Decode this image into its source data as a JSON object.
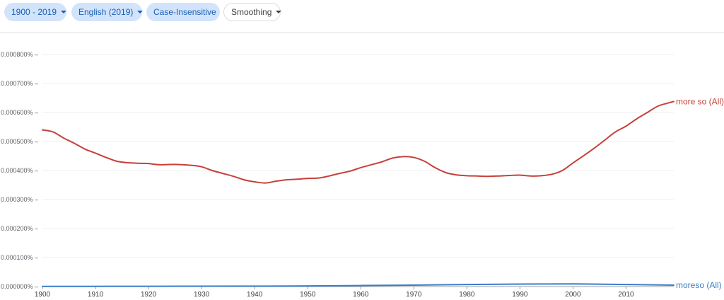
{
  "filters": {
    "years": "1900 - 2019",
    "corpus": "English (2019)",
    "case": "Case-Insensitive",
    "smoothing": "Smoothing"
  },
  "colors": {
    "chip_bg": "#d2e3fc",
    "chip_text": "#1a5fb4",
    "series1": "#c5413a",
    "series2": "#3a7dc9"
  },
  "chart_data": {
    "type": "line",
    "x_range": [
      1900,
      2019
    ],
    "ylim": [
      0,
      0.0008
    ],
    "y_ticks": [
      "0.000000%",
      "0.000100%",
      "0.000200%",
      "0.000300%",
      "0.000400%",
      "0.000500%",
      "0.000600%",
      "0.000700%",
      "0.000800%"
    ],
    "x_ticks": [
      "1900",
      "1910",
      "1920",
      "1930",
      "1940",
      "1950",
      "1960",
      "1970",
      "1980",
      "1990",
      "2000",
      "2010"
    ],
    "grid": true,
    "legend": "right-end labels",
    "series": [
      {
        "name": "more so (All)",
        "points": [
          [
            1900,
            0.00054
          ],
          [
            1902,
            0.000533
          ],
          [
            1904,
            0.000512
          ],
          [
            1906,
            0.000494
          ],
          [
            1908,
            0.000474
          ],
          [
            1910,
            0.00046
          ],
          [
            1912,
            0.000445
          ],
          [
            1914,
            0.000432
          ],
          [
            1916,
            0.000427
          ],
          [
            1918,
            0.000425
          ],
          [
            1920,
            0.000424
          ],
          [
            1922,
            0.00042
          ],
          [
            1925,
            0.000421
          ],
          [
            1928,
            0.000418
          ],
          [
            1930,
            0.000413
          ],
          [
            1932,
            0.0004
          ],
          [
            1934,
            0.00039
          ],
          [
            1936,
            0.00038
          ],
          [
            1938,
            0.000368
          ],
          [
            1940,
            0.000361
          ],
          [
            1942,
            0.000357
          ],
          [
            1944,
            0.000363
          ],
          [
            1946,
            0.000368
          ],
          [
            1948,
            0.00037
          ],
          [
            1950,
            0.000373
          ],
          [
            1952,
            0.000374
          ],
          [
            1954,
            0.000381
          ],
          [
            1956,
            0.00039
          ],
          [
            1958,
            0.000398
          ],
          [
            1960,
            0.00041
          ],
          [
            1962,
            0.00042
          ],
          [
            1964,
            0.00043
          ],
          [
            1966,
            0.000443
          ],
          [
            1968,
            0.000448
          ],
          [
            1970,
            0.000445
          ],
          [
            1972,
            0.000432
          ],
          [
            1974,
            0.00041
          ],
          [
            1976,
            0.000393
          ],
          [
            1978,
            0.000385
          ],
          [
            1980,
            0.000382
          ],
          [
            1982,
            0.000381
          ],
          [
            1984,
            0.00038
          ],
          [
            1986,
            0.000381
          ],
          [
            1988,
            0.000383
          ],
          [
            1990,
            0.000384
          ],
          [
            1992,
            0.000381
          ],
          [
            1994,
            0.000382
          ],
          [
            1996,
            0.000387
          ],
          [
            1998,
            0.0004
          ],
          [
            2000,
            0.000426
          ],
          [
            2002,
            0.000451
          ],
          [
            2004,
            0.000477
          ],
          [
            2006,
            0.000505
          ],
          [
            2008,
            0.000533
          ],
          [
            2010,
            0.000553
          ],
          [
            2012,
            0.000578
          ],
          [
            2014,
            0.0006
          ],
          [
            2016,
            0.000622
          ],
          [
            2018,
            0.000633
          ],
          [
            2019,
            0.000638
          ]
        ]
      },
      {
        "name": "moreso (All)",
        "points": [
          [
            1900,
            5e-07
          ],
          [
            1920,
            1e-06
          ],
          [
            1940,
            1.5e-06
          ],
          [
            1950,
            2e-06
          ],
          [
            1960,
            3.5e-06
          ],
          [
            1970,
            5e-06
          ],
          [
            1980,
            7e-06
          ],
          [
            1990,
            8.5e-06
          ],
          [
            2000,
            9e-06
          ],
          [
            2010,
            7e-06
          ],
          [
            2019,
            5e-06
          ]
        ]
      }
    ]
  }
}
